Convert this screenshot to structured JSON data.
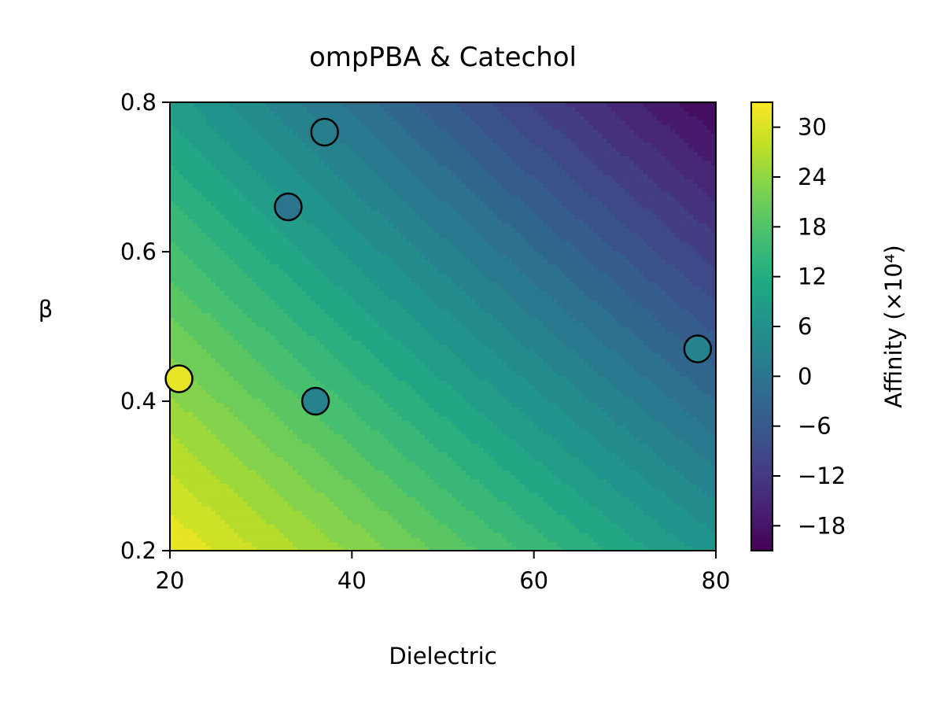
{
  "chart_data": {
    "type": "heatmap",
    "title": "ompPBA & Catechol",
    "xlabel": "Dielectric",
    "ylabel": "β",
    "xlim": [
      20,
      80
    ],
    "ylim": [
      0.2,
      0.8
    ],
    "x_ticks": [
      "20",
      "40",
      "60",
      "80"
    ],
    "y_ticks": [
      "0.2",
      "0.4",
      "0.6",
      "0.8"
    ],
    "colormap": "viridis",
    "colorbar": {
      "label": "Affinity (×10⁴)",
      "range": [
        -21,
        33
      ],
      "ticks": [
        "−18",
        "−12",
        "−6",
        "0",
        "6",
        "12",
        "18",
        "24",
        "30"
      ]
    },
    "surface": {
      "description": "linear plane",
      "corners": {
        "x20_y0.2": 32,
        "x80_y0.2": 7,
        "x20_y0.8": 9,
        "x80_y0.8": -20
      }
    },
    "points": [
      {
        "x": 21,
        "y": 0.43,
        "value": 31
      },
      {
        "x": 33,
        "y": 0.66,
        "value": 0
      },
      {
        "x": 36,
        "y": 0.4,
        "value": 3
      },
      {
        "x": 37,
        "y": 0.76,
        "value": 2
      },
      {
        "x": 78,
        "y": 0.47,
        "value": 3
      }
    ],
    "grid": false
  }
}
